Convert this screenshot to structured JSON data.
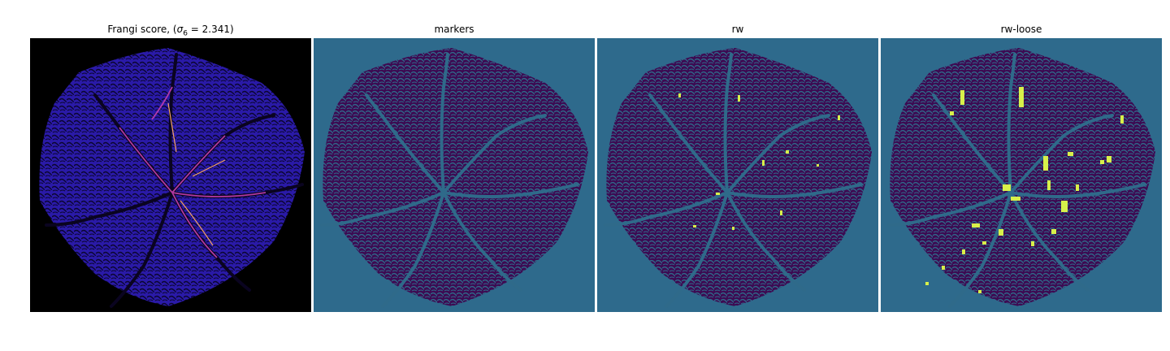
{
  "panels": [
    {
      "title_prefix": "Frangi score, (",
      "sigma_symbol": "σ",
      "sigma_sub": "6",
      "title_suffix": " = 2.341)",
      "image": "frangi-vesselness-map",
      "colormap": "plasma"
    },
    {
      "title": "markers",
      "image": "marker-segmentation-map",
      "colormap": "viridis"
    },
    {
      "title": "rw",
      "image": "random-walker-segmentation",
      "colormap": "viridis"
    },
    {
      "title": "rw-loose",
      "image": "random-walker-loose-segmentation",
      "colormap": "viridis"
    }
  ],
  "colors": {
    "background_black": "#000000",
    "frangi_tissue": "#2a1aa8",
    "frangi_vessel": "#e06bc4",
    "frangi_vessel_hot": "#f7b65a",
    "viridis_background": "#2e6a8c",
    "viridis_tissue": "#3d0a52",
    "viridis_vessel": "#2f6a8a",
    "viridis_highlight": "#d8f04a"
  }
}
